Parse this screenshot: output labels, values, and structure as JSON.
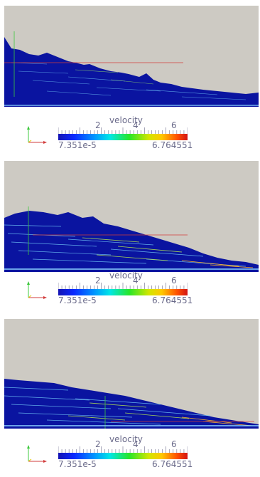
{
  "panels": [
    {
      "legend": {
        "title": "velocity",
        "ticks": [
          "2",
          "4",
          "6"
        ],
        "min": "7.351e-5",
        "max": "6.764551"
      }
    },
    {
      "legend": {
        "title": "velocity",
        "ticks": [
          "2",
          "4",
          "6"
        ],
        "min": "7.351e-5",
        "max": "6.764551"
      }
    },
    {
      "legend": {
        "title": "velocity",
        "ticks": [
          "2",
          "4",
          "6"
        ],
        "min": "7.351e-5",
        "max": "6.764551"
      }
    }
  ],
  "colors": {
    "background": "#cdcac3",
    "fluid": "#0a14a0",
    "probe_line": "#d23c3c",
    "probe_vertical": "#3cc83c"
  }
}
